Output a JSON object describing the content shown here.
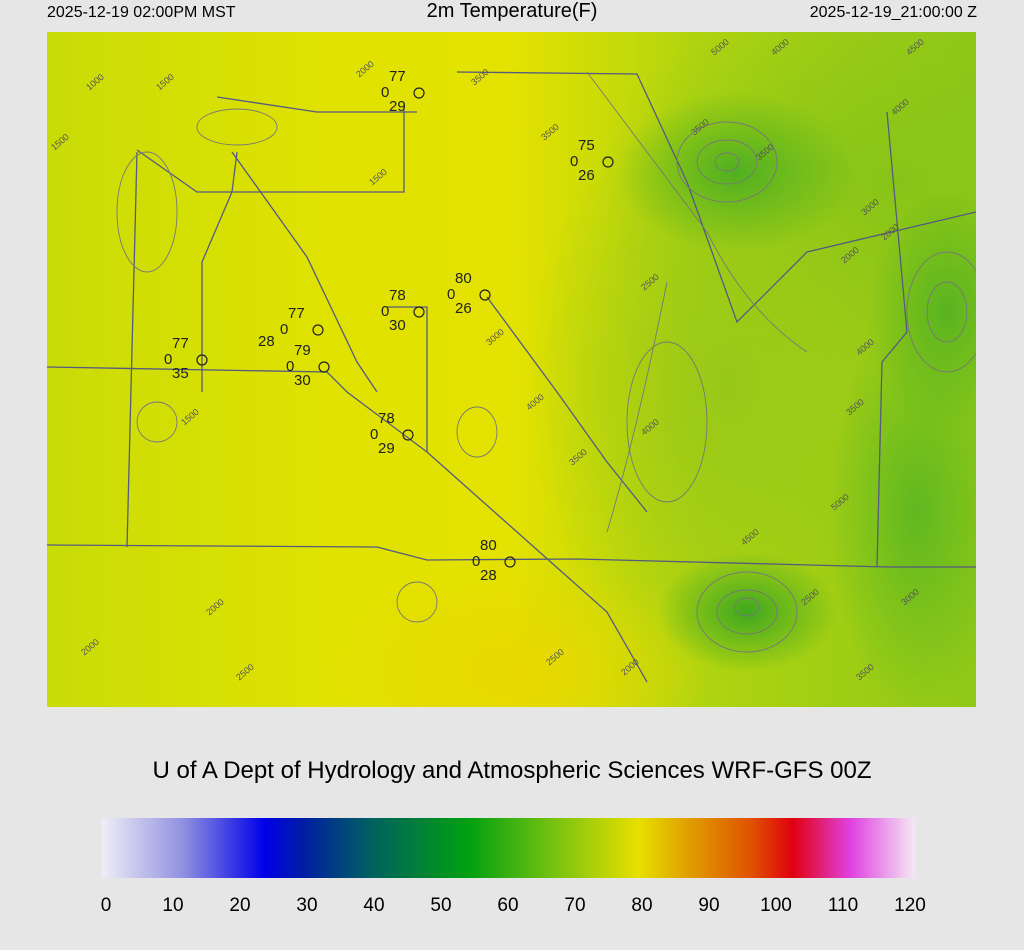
{
  "header": {
    "left": "2025-12-19 02:00PM MST",
    "title": "2m Temperature(F)",
    "right": "2025-12-19_21:00:00 Z"
  },
  "stations": [
    {
      "temp": "77",
      "wind": "0",
      "dew": "29"
    },
    {
      "temp": "75",
      "wind": "0",
      "dew": "26"
    },
    {
      "temp": "80",
      "wind": "0",
      "dew": "26"
    },
    {
      "temp": "78",
      "wind": "0",
      "dew": "30"
    },
    {
      "temp": "77",
      "wind": "0",
      "dew": "28"
    },
    {
      "temp": "79",
      "wind": "0",
      "dew": "30"
    },
    {
      "temp": "77",
      "wind": "0",
      "dew": "35"
    },
    {
      "temp": "78",
      "wind": "0",
      "dew": "29"
    },
    {
      "temp": "80",
      "wind": "0",
      "dew": "28"
    }
  ],
  "contour_labels": [
    "1000",
    "1500",
    "1500",
    "2000",
    "1500",
    "3500",
    "3500",
    "5000",
    "4000",
    "4500",
    "4000",
    "3500",
    "3500",
    "3000",
    "2000",
    "2000",
    "2500",
    "3000",
    "4000",
    "3500",
    "4000",
    "4500",
    "4000",
    "3500",
    "5000",
    "3000",
    "2500",
    "2500",
    "2000",
    "2000",
    "2000",
    "2500",
    "1500",
    "3500"
  ],
  "credit": "U of A Dept of Hydrology and Atmospheric Sciences WRF-GFS 00Z",
  "colorbar": {
    "ticks": [
      "0",
      "10",
      "20",
      "30",
      "40",
      "50",
      "60",
      "70",
      "80",
      "90",
      "100",
      "110",
      "120"
    ]
  }
}
